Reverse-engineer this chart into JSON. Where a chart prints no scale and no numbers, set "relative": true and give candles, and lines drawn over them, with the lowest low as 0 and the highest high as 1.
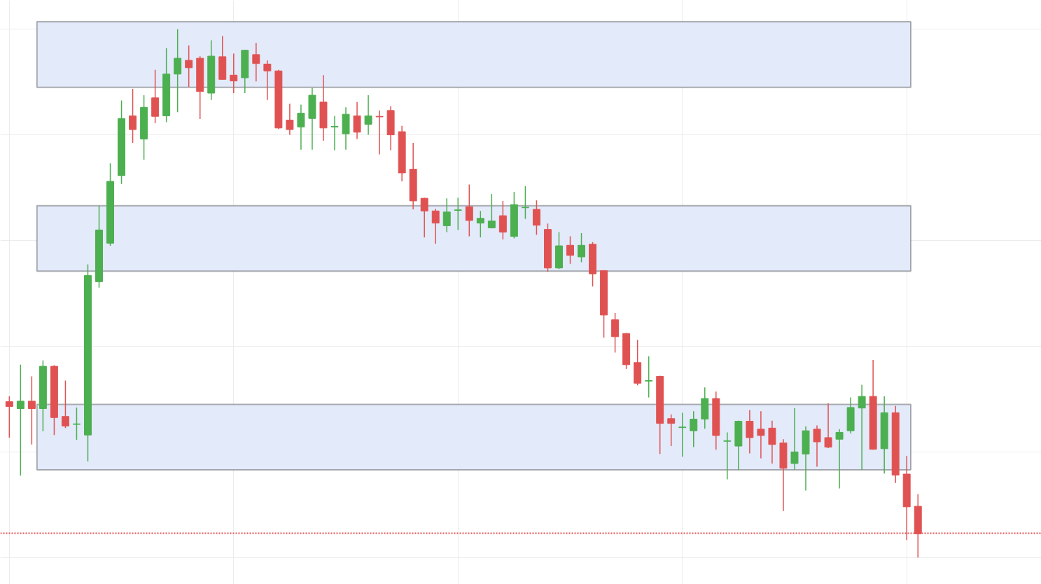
{
  "chart_data": {
    "type": "candlestick",
    "relative": true,
    "categories": [
      null,
      null,
      null,
      null,
      null,
      null,
      null,
      null,
      null,
      null,
      null,
      null,
      null,
      null,
      null,
      null,
      null,
      null,
      null,
      null,
      null,
      null,
      null,
      null,
      null,
      null,
      null,
      null,
      null,
      null,
      null,
      null,
      null,
      null,
      null,
      null,
      null,
      null,
      null,
      null,
      null,
      null,
      null,
      null,
      null,
      null,
      null,
      null,
      null,
      null,
      null,
      null,
      null,
      null,
      null,
      null,
      null,
      null,
      null,
      null,
      null,
      null,
      null,
      null,
      null,
      null,
      null,
      null,
      null,
      null,
      null,
      null,
      null,
      null,
      null,
      null,
      null,
      null,
      null,
      null,
      null,
      null
    ],
    "ohlc": [
      [
        0.295,
        0.305,
        0.227,
        0.286
      ],
      [
        0.282,
        0.365,
        0.155,
        0.296
      ],
      [
        0.296,
        0.343,
        0.214,
        0.282
      ],
      [
        0.282,
        0.373,
        0.239,
        0.362
      ],
      [
        0.362,
        0.364,
        0.232,
        0.265
      ],
      [
        0.267,
        0.335,
        0.245,
        0.249
      ],
      [
        0.252,
        0.284,
        0.223,
        0.253
      ],
      [
        0.232,
        0.555,
        0.182,
        0.534
      ],
      [
        0.522,
        0.666,
        0.511,
        0.62
      ],
      [
        0.595,
        0.746,
        0.59,
        0.712
      ],
      [
        0.723,
        0.865,
        0.707,
        0.831
      ],
      [
        0.836,
        0.887,
        0.785,
        0.81
      ],
      [
        0.792,
        0.875,
        0.753,
        0.852
      ],
      [
        0.87,
        0.923,
        0.822,
        0.835
      ],
      [
        0.836,
        0.964,
        0.824,
        0.915
      ],
      [
        0.915,
        1.0,
        0.843,
        0.945
      ],
      [
        0.941,
        0.969,
        0.891,
        0.927
      ],
      [
        0.945,
        0.949,
        0.83,
        0.882
      ],
      [
        0.879,
        0.979,
        0.866,
        0.949
      ],
      [
        0.948,
        0.987,
        0.904,
        0.905
      ],
      [
        0.913,
        0.954,
        0.879,
        0.902
      ],
      [
        0.908,
        0.961,
        0.879,
        0.96
      ],
      [
        0.952,
        0.974,
        0.901,
        0.935
      ],
      [
        0.934,
        0.941,
        0.866,
        0.921
      ],
      [
        0.921,
        0.923,
        0.811,
        0.813
      ],
      [
        0.828,
        0.859,
        0.8,
        0.81
      ],
      [
        0.815,
        0.857,
        0.772,
        0.841
      ],
      [
        0.831,
        0.889,
        0.772,
        0.875
      ],
      [
        0.862,
        0.913,
        0.789,
        0.813
      ],
      [
        0.815,
        0.836,
        0.771,
        0.816
      ],
      [
        0.802,
        0.852,
        0.772,
        0.839
      ],
      [
        0.836,
        0.862,
        0.792,
        0.805
      ],
      [
        0.82,
        0.875,
        0.8,
        0.836
      ],
      [
        0.835,
        0.846,
        0.763,
        0.834
      ],
      [
        0.846,
        0.854,
        0.771,
        0.8
      ],
      [
        0.806,
        0.817,
        0.712,
        0.728
      ],
      [
        0.735,
        0.785,
        0.659,
        0.675
      ],
      [
        0.68,
        0.681,
        0.606,
        0.656
      ],
      [
        0.656,
        0.66,
        0.594,
        0.633
      ],
      [
        0.628,
        0.68,
        0.616,
        0.654
      ],
      [
        0.657,
        0.681,
        0.62,
        0.658
      ],
      [
        0.664,
        0.706,
        0.608,
        0.638
      ],
      [
        0.633,
        0.656,
        0.606,
        0.642
      ],
      [
        0.624,
        0.688,
        0.623,
        0.637
      ],
      [
        0.647,
        0.675,
        0.602,
        0.616
      ],
      [
        0.608,
        0.692,
        0.604,
        0.668
      ],
      [
        0.662,
        0.703,
        0.641,
        0.663
      ],
      [
        0.659,
        0.676,
        0.611,
        0.629
      ],
      [
        0.621,
        0.632,
        0.541,
        0.548
      ],
      [
        0.548,
        0.616,
        0.546,
        0.59
      ],
      [
        0.591,
        0.608,
        0.556,
        0.572
      ],
      [
        0.569,
        0.614,
        0.559,
        0.591
      ],
      [
        0.593,
        0.597,
        0.513,
        0.537
      ],
      [
        0.543,
        0.544,
        0.416,
        0.459
      ],
      [
        0.45,
        0.463,
        0.388,
        0.418
      ],
      [
        0.424,
        0.425,
        0.357,
        0.365
      ],
      [
        0.369,
        0.412,
        0.326,
        0.33
      ],
      [
        0.334,
        0.381,
        0.303,
        0.335
      ],
      [
        0.343,
        0.344,
        0.196,
        0.254
      ],
      [
        0.263,
        0.271,
        0.211,
        0.254
      ],
      [
        0.246,
        0.274,
        0.191,
        0.247
      ],
      [
        0.24,
        0.277,
        0.209,
        0.262
      ],
      [
        0.262,
        0.322,
        0.244,
        0.301
      ],
      [
        0.301,
        0.314,
        0.204,
        0.231
      ],
      [
        0.22,
        0.237,
        0.148,
        0.221
      ],
      [
        0.211,
        0.259,
        0.166,
        0.258
      ],
      [
        0.258,
        0.279,
        0.197,
        0.227
      ],
      [
        0.243,
        0.277,
        0.188,
        0.231
      ],
      [
        0.245,
        0.259,
        0.178,
        0.214
      ],
      [
        0.217,
        0.224,
        0.088,
        0.169
      ],
      [
        0.178,
        0.283,
        0.166,
        0.2
      ],
      [
        0.196,
        0.248,
        0.127,
        0.24
      ],
      [
        0.243,
        0.25,
        0.172,
        0.219
      ],
      [
        0.227,
        0.292,
        0.207,
        0.209
      ],
      [
        0.224,
        0.243,
        0.131,
        0.237
      ],
      [
        0.24,
        0.303,
        0.235,
        0.284
      ],
      [
        0.283,
        0.327,
        0.166,
        0.305
      ],
      [
        0.305,
        0.374,
        0.204,
        0.205
      ],
      [
        0.206,
        0.305,
        0.159,
        0.274
      ],
      [
        0.274,
        0.287,
        0.141,
        0.156
      ],
      [
        0.158,
        0.192,
        0.033,
        0.096
      ],
      [
        0.097,
        0.12,
        0.0,
        0.045
      ]
    ],
    "colors": [
      "#e05252",
      "#4caf50",
      "#e05252",
      "#4caf50",
      "#e05252",
      "#e05252",
      "#4caf50",
      "#4caf50",
      "#4caf50",
      "#4caf50",
      "#4caf50",
      "#e05252",
      "#4caf50",
      "#e05252",
      "#4caf50",
      "#4caf50",
      "#e05252",
      "#e05252",
      "#4caf50",
      "#e05252",
      "#e05252",
      "#4caf50",
      "#e05252",
      "#e05252",
      "#e05252",
      "#e05252",
      "#4caf50",
      "#4caf50",
      "#e05252",
      "#4caf50",
      "#4caf50",
      "#e05252",
      "#4caf50",
      "#e05252",
      "#e05252",
      "#e05252",
      "#e05252",
      "#e05252",
      "#e05252",
      "#4caf50",
      "#4caf50",
      "#e05252",
      "#4caf50",
      "#4caf50",
      "#e05252",
      "#4caf50",
      "#4caf50",
      "#e05252",
      "#e05252",
      "#4caf50",
      "#e05252",
      "#4caf50",
      "#e05252",
      "#e05252",
      "#e05252",
      "#e05252",
      "#e05252",
      "#4caf50",
      "#e05252",
      "#e05252",
      "#4caf50",
      "#4caf50",
      "#4caf50",
      "#e05252",
      "#4caf50",
      "#4caf50",
      "#e05252",
      "#e05252",
      "#e05252",
      "#e05252",
      "#4caf50",
      "#4caf50",
      "#e05252",
      "#e05252",
      "#4caf50",
      "#4caf50",
      "#4caf50",
      "#e05252",
      "#4caf50",
      "#e05252",
      "#e05252",
      "#e05252"
    ],
    "bands": [
      {
        "axis": "y",
        "from": 0.89,
        "to": 1.014,
        "color": "#e3eafa"
      },
      {
        "axis": "y",
        "from": 0.542,
        "to": 0.666,
        "color": "#e3eafa"
      },
      {
        "axis": "y",
        "from": 0.166,
        "to": 0.29,
        "color": "#e3eafa"
      }
    ],
    "ref_lines": [
      {
        "axis": "y",
        "value": 0.046,
        "color": "#e05252",
        "line_style": "dotted"
      }
    ],
    "grid": true
  }
}
